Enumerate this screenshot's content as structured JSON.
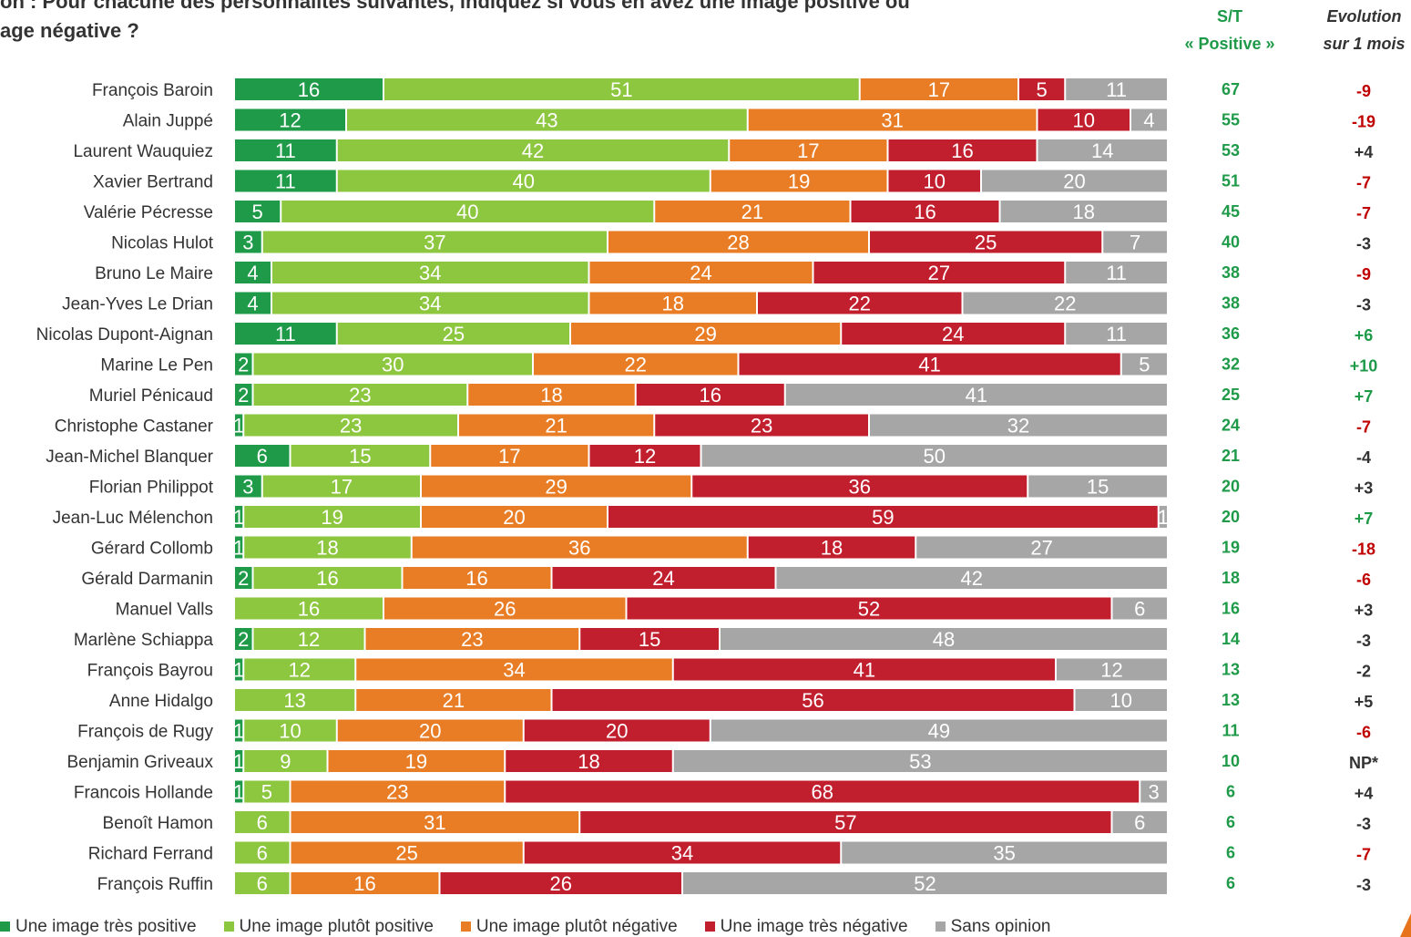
{
  "question": "on : Pour chacune des personnalités suivantes, indiquez si vous en avez une image positive ou\nage négative ?",
  "headers": {
    "st_line1": "S/T",
    "st_line2": "« Positive »",
    "evo_line1": "Evolution",
    "evo_line2": "sur 1 mois"
  },
  "colors": {
    "tres_positive": "#1e9a49",
    "plutot_positive": "#8dc63f",
    "plutot_negative": "#e87d25",
    "tres_negative": "#c21f2e",
    "sans_opinion": "#a6a6a6",
    "st_text": "#1e9a49",
    "evo_negative": "#c00000",
    "evo_positive": "#1e9a49",
    "evo_neutral": "#333333"
  },
  "chart_data": {
    "type": "bar",
    "orientation": "horizontal",
    "stacked": true,
    "xlim": [
      0,
      100
    ],
    "categories": [
      "François Baroin",
      "Alain Juppé",
      "Laurent Wauquiez",
      "Xavier Bertrand",
      "Valérie Pécresse",
      "Nicolas Hulot",
      "Bruno Le Maire",
      "Jean-Yves Le Drian",
      "Nicolas Dupont-Aignan",
      "Marine Le Pen",
      "Muriel Pénicaud",
      "Christophe Castaner",
      "Jean-Michel Blanquer",
      "Florian Philippot",
      "Jean-Luc Mélenchon",
      "Gérard Collomb",
      "Gérald Darmanin",
      "Manuel Valls",
      "Marlène Schiappa",
      "François Bayrou",
      "Anne Hidalgo",
      "François de Rugy",
      "Benjamin Griveaux",
      "Francois Hollande",
      "Benoît Hamon",
      "Richard Ferrand",
      "François Ruffin"
    ],
    "series": [
      {
        "name": "Une image très positive",
        "values": [
          16,
          12,
          11,
          11,
          5,
          3,
          4,
          4,
          11,
          2,
          2,
          1,
          6,
          3,
          1,
          1,
          2,
          0,
          2,
          1,
          0,
          1,
          1,
          1,
          0,
          0,
          0
        ]
      },
      {
        "name": "Une image plutôt positive",
        "values": [
          51,
          43,
          42,
          40,
          40,
          37,
          34,
          34,
          25,
          30,
          23,
          23,
          15,
          17,
          19,
          18,
          16,
          16,
          12,
          12,
          13,
          10,
          9,
          5,
          6,
          6,
          6
        ]
      },
      {
        "name": "Une image plutôt négative",
        "values": [
          17,
          31,
          17,
          19,
          21,
          28,
          24,
          18,
          29,
          22,
          18,
          21,
          17,
          29,
          20,
          36,
          16,
          26,
          23,
          34,
          21,
          20,
          19,
          23,
          31,
          25,
          16
        ]
      },
      {
        "name": "Une image très négative",
        "values": [
          5,
          10,
          16,
          10,
          16,
          25,
          27,
          22,
          24,
          41,
          16,
          23,
          12,
          36,
          59,
          18,
          24,
          52,
          15,
          41,
          56,
          20,
          18,
          68,
          57,
          34,
          26
        ]
      },
      {
        "name": "Sans opinion",
        "values": [
          11,
          4,
          14,
          20,
          18,
          7,
          11,
          22,
          11,
          5,
          41,
          32,
          50,
          15,
          1,
          27,
          42,
          6,
          48,
          12,
          10,
          49,
          53,
          3,
          6,
          35,
          52
        ]
      }
    ],
    "st_positive": [
      "67",
      "55",
      "53",
      "51",
      "45",
      "40",
      "38",
      "38",
      "36",
      "32",
      "25",
      "24",
      "21",
      "20",
      "20",
      "19",
      "18",
      "16",
      "14",
      "13",
      "13",
      "11",
      "10",
      "6",
      "6",
      "6",
      "6"
    ],
    "evolution": [
      "-9",
      "-19",
      "+4",
      "-7",
      "-7",
      "-3",
      "-9",
      "-3",
      "+6",
      "+10",
      "+7",
      "-7",
      "-4",
      "+3",
      "+7",
      "-18",
      "-6",
      "+3",
      "-3",
      "-2",
      "+5",
      "-6",
      "NP*",
      "+4",
      "-3",
      "-7",
      "-3"
    ],
    "evolution_color": [
      "neg",
      "neg",
      "neutral",
      "neg",
      "neg",
      "neutral",
      "neg",
      "neutral",
      "pos",
      "pos",
      "pos",
      "neg",
      "neutral",
      "neutral",
      "pos",
      "neg",
      "neg",
      "neutral",
      "neutral",
      "neutral",
      "neutral",
      "neg",
      "neutral",
      "neutral",
      "neutral",
      "neg",
      "neutral"
    ]
  }
}
